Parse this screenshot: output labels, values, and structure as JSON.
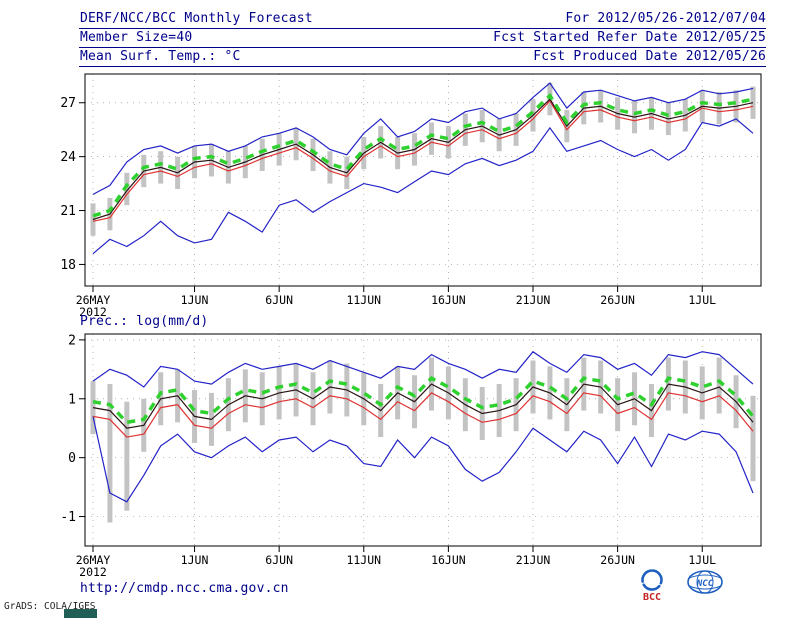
{
  "header": {
    "title": "DERF/NCC/BCC Monthly Forecast",
    "member_size": "Member Size=40",
    "forecast_range": "For 2012/05/26-2012/07/04",
    "refer_date": "Fcst Started Refer Date 2012/05/25",
    "produced_date": "Fcst Produced Date 2012/05/26"
  },
  "footer": {
    "url": "http://cmdp.ncc.cma.gov.cn",
    "grads_credit": "GrADS: COLA/IGES",
    "logo1_text": "BCC",
    "logo2_text": "NCC"
  },
  "chart_data": [
    {
      "type": "line",
      "title": "Mean Surf. Temp.: °C",
      "xlabel": "",
      "ylabel": "°C",
      "ylim": [
        16.8,
        28.6
      ],
      "yticks": [
        18,
        21,
        24,
        27
      ],
      "grid": "dotted",
      "legend": "none",
      "xticks": [
        {
          "label": "26MAY",
          "sub": "2012",
          "pos": 0
        },
        {
          "label": "1JUN",
          "pos": 6
        },
        {
          "label": "6JUN",
          "pos": 11
        },
        {
          "label": "11JUN",
          "pos": 16
        },
        {
          "label": "16JUN",
          "pos": 21
        },
        {
          "label": "21JUN",
          "pos": 26
        },
        {
          "label": "26JUN",
          "pos": 31
        },
        {
          "label": "1JUL",
          "pos": 36
        }
      ],
      "bars": {
        "name": "ensemble-spread",
        "color": "#c3c3c3",
        "low": [
          19.6,
          19.9,
          21.3,
          22.3,
          22.5,
          22.2,
          22.8,
          22.9,
          22.5,
          22.8,
          23.2,
          23.5,
          23.8,
          23.2,
          22.5,
          22.2,
          23.3,
          23.9,
          23.3,
          23.5,
          24.1,
          23.9,
          24.6,
          24.8,
          24.3,
          24.6,
          25.4,
          26.3,
          24.8,
          25.8,
          25.9,
          25.5,
          25.3,
          25.5,
          25.2,
          25.4,
          25.9,
          25.8,
          25.9,
          26.1
        ],
        "high": [
          21.4,
          21.7,
          23.1,
          24.1,
          24.3,
          24.0,
          24.6,
          24.7,
          24.3,
          24.6,
          25.0,
          25.3,
          25.6,
          25.0,
          24.3,
          24.0,
          25.1,
          25.7,
          25.1,
          25.3,
          25.9,
          25.7,
          26.4,
          26.6,
          26.1,
          26.4,
          27.2,
          28.1,
          26.6,
          27.6,
          27.7,
          27.3,
          27.1,
          27.3,
          27.0,
          27.2,
          27.7,
          27.6,
          27.7,
          27.9
        ]
      },
      "series": [
        {
          "name": "ensemble-max",
          "color": "#2323c8",
          "width": 1.2,
          "dash": "",
          "values": [
            21.9,
            22.4,
            23.7,
            24.4,
            24.6,
            24.2,
            24.6,
            24.7,
            24.3,
            24.6,
            25.1,
            25.3,
            25.6,
            25.1,
            24.4,
            24.1,
            25.3,
            26.1,
            25.1,
            25.4,
            26.1,
            25.9,
            26.5,
            26.7,
            26.1,
            26.4,
            27.3,
            28.1,
            26.7,
            27.6,
            27.7,
            27.4,
            27.1,
            27.3,
            27.0,
            27.2,
            27.7,
            27.5,
            27.6,
            27.8
          ]
        },
        {
          "name": "ensemble-min",
          "color": "#2323c8",
          "width": 1.2,
          "dash": "",
          "values": [
            18.6,
            19.4,
            19.0,
            19.6,
            20.4,
            19.6,
            19.2,
            19.4,
            20.9,
            20.4,
            19.8,
            21.3,
            21.6,
            20.9,
            21.5,
            22.0,
            22.5,
            22.3,
            22.0,
            22.6,
            23.2,
            23.0,
            23.6,
            23.9,
            23.5,
            23.8,
            24.3,
            25.6,
            24.3,
            24.6,
            24.9,
            24.4,
            24.0,
            24.4,
            23.8,
            24.4,
            25.9,
            25.7,
            26.1,
            25.3
          ]
        },
        {
          "name": "red-line",
          "color": "#e03232",
          "width": 1.2,
          "dash": "",
          "values": [
            20.4,
            20.6,
            21.9,
            23.0,
            23.2,
            22.9,
            23.4,
            23.6,
            23.2,
            23.5,
            23.9,
            24.2,
            24.5,
            23.9,
            23.2,
            22.9,
            24.0,
            24.6,
            24.0,
            24.2,
            24.8,
            24.6,
            25.3,
            25.5,
            25.0,
            25.3,
            26.1,
            27.1,
            25.5,
            26.5,
            26.6,
            26.2,
            26.0,
            26.2,
            25.9,
            26.1,
            26.7,
            26.5,
            26.6,
            26.8
          ]
        },
        {
          "name": "dark-line",
          "color": "#2b1515",
          "width": 1.2,
          "dash": "",
          "values": [
            20.5,
            20.8,
            22.1,
            23.2,
            23.4,
            23.1,
            23.7,
            23.8,
            23.4,
            23.7,
            24.1,
            24.4,
            24.7,
            24.1,
            23.4,
            23.1,
            24.2,
            24.8,
            24.2,
            24.4,
            25.0,
            24.8,
            25.5,
            25.7,
            25.2,
            25.5,
            26.3,
            27.2,
            25.7,
            26.7,
            26.8,
            26.4,
            26.2,
            26.4,
            26.1,
            26.3,
            26.8,
            26.7,
            26.8,
            27.0
          ]
        },
        {
          "name": "ensemble-mean",
          "color": "#2ed12e",
          "width": 3.5,
          "dash": "8,6",
          "values": [
            20.7,
            21.0,
            22.4,
            23.4,
            23.6,
            23.3,
            23.9,
            24.0,
            23.6,
            23.9,
            24.3,
            24.6,
            24.9,
            24.3,
            23.6,
            23.3,
            24.4,
            25.0,
            24.4,
            24.6,
            25.2,
            25.0,
            25.7,
            25.9,
            25.4,
            25.7,
            26.5,
            27.4,
            25.9,
            26.9,
            27.0,
            26.6,
            26.4,
            26.6,
            26.3,
            26.5,
            27.0,
            26.9,
            27.0,
            27.2
          ]
        }
      ]
    },
    {
      "type": "line",
      "title": "Prec.: log(mm/d)",
      "xlabel": "",
      "ylabel": "log(mm/d)",
      "ylim": [
        -1.5,
        2.1
      ],
      "yticks": [
        -1,
        0,
        1,
        2
      ],
      "grid": "dotted",
      "legend": "none",
      "xticks": [
        {
          "label": "26MAY",
          "sub": "2012",
          "pos": 0
        },
        {
          "label": "1JUN",
          "pos": 6
        },
        {
          "label": "6JUN",
          "pos": 11
        },
        {
          "label": "11JUN",
          "pos": 16
        },
        {
          "label": "16JUN",
          "pos": 21
        },
        {
          "label": "21JUN",
          "pos": 26
        },
        {
          "label": "26JUN",
          "pos": 31
        },
        {
          "label": "1JUL",
          "pos": 36
        }
      ],
      "bars": {
        "name": "ensemble-spread",
        "color": "#c3c3c3",
        "low": [
          0.4,
          -1.1,
          -0.9,
          0.1,
          0.55,
          0.6,
          0.25,
          0.2,
          0.45,
          0.6,
          0.55,
          0.65,
          0.7,
          0.55,
          0.75,
          0.7,
          0.55,
          0.35,
          0.65,
          0.5,
          0.8,
          0.65,
          0.45,
          0.3,
          0.35,
          0.45,
          0.75,
          0.65,
          0.45,
          0.8,
          0.75,
          0.45,
          0.55,
          0.35,
          0.8,
          0.75,
          0.65,
          0.75,
          0.5,
          -0.4
        ],
        "high": [
          1.3,
          1.25,
          0.95,
          1.0,
          1.45,
          1.5,
          1.15,
          1.1,
          1.35,
          1.5,
          1.45,
          1.55,
          1.6,
          1.45,
          1.65,
          1.6,
          1.45,
          1.25,
          1.55,
          1.4,
          1.7,
          1.55,
          1.35,
          1.2,
          1.25,
          1.35,
          1.65,
          1.55,
          1.35,
          1.7,
          1.65,
          1.35,
          1.45,
          1.25,
          1.7,
          1.65,
          1.55,
          1.7,
          1.4,
          1.05
        ]
      },
      "series": [
        {
          "name": "ensemble-max",
          "color": "#2323c8",
          "width": 1.2,
          "dash": "",
          "values": [
            1.3,
            1.5,
            1.4,
            1.2,
            1.55,
            1.5,
            1.3,
            1.25,
            1.45,
            1.6,
            1.5,
            1.55,
            1.6,
            1.5,
            1.65,
            1.55,
            1.45,
            1.35,
            1.55,
            1.5,
            1.75,
            1.6,
            1.5,
            1.35,
            1.5,
            1.45,
            1.8,
            1.6,
            1.45,
            1.75,
            1.7,
            1.5,
            1.6,
            1.4,
            1.75,
            1.7,
            1.8,
            1.75,
            1.5,
            1.25
          ]
        },
        {
          "name": "ensemble-min",
          "color": "#2323c8",
          "width": 1.2,
          "dash": "",
          "values": [
            0.7,
            -0.6,
            -0.75,
            -0.3,
            0.2,
            0.4,
            0.1,
            0.0,
            0.2,
            0.35,
            0.1,
            0.3,
            0.35,
            0.1,
            0.3,
            0.2,
            -0.1,
            -0.15,
            0.3,
            0.0,
            0.35,
            0.2,
            -0.2,
            -0.4,
            -0.25,
            0.1,
            0.5,
            0.3,
            0.1,
            0.45,
            0.3,
            -0.1,
            0.35,
            -0.15,
            0.4,
            0.3,
            0.45,
            0.4,
            0.1,
            -0.6
          ]
        },
        {
          "name": "red-line",
          "color": "#e03232",
          "width": 1.2,
          "dash": "",
          "values": [
            0.7,
            0.65,
            0.35,
            0.4,
            0.85,
            0.9,
            0.55,
            0.5,
            0.75,
            0.9,
            0.85,
            0.95,
            1.0,
            0.85,
            1.05,
            1.0,
            0.85,
            0.65,
            0.95,
            0.8,
            1.1,
            0.95,
            0.75,
            0.6,
            0.65,
            0.75,
            1.05,
            0.95,
            0.75,
            1.1,
            1.05,
            0.75,
            0.85,
            0.65,
            1.1,
            1.05,
            0.95,
            1.05,
            0.8,
            0.45
          ]
        },
        {
          "name": "dark-line",
          "color": "#2b1515",
          "width": 1.2,
          "dash": "",
          "values": [
            0.85,
            0.8,
            0.5,
            0.55,
            1.0,
            1.05,
            0.7,
            0.65,
            0.9,
            1.05,
            1.0,
            1.1,
            1.15,
            1.0,
            1.2,
            1.15,
            1.0,
            0.8,
            1.1,
            0.95,
            1.25,
            1.1,
            0.9,
            0.75,
            0.8,
            0.9,
            1.2,
            1.1,
            0.9,
            1.25,
            1.2,
            0.9,
            1.0,
            0.8,
            1.25,
            1.2,
            1.1,
            1.2,
            0.95,
            0.6
          ]
        },
        {
          "name": "ensemble-mean",
          "color": "#2ed12e",
          "width": 3.5,
          "dash": "8,6",
          "values": [
            0.95,
            0.9,
            0.6,
            0.65,
            1.1,
            1.15,
            0.8,
            0.75,
            1.0,
            1.15,
            1.1,
            1.2,
            1.25,
            1.1,
            1.3,
            1.25,
            1.1,
            0.9,
            1.2,
            1.05,
            1.35,
            1.2,
            1.0,
            0.85,
            0.9,
            1.0,
            1.3,
            1.2,
            1.0,
            1.35,
            1.3,
            1.0,
            1.1,
            0.9,
            1.35,
            1.3,
            1.2,
            1.3,
            1.05,
            0.7
          ]
        }
      ]
    }
  ]
}
